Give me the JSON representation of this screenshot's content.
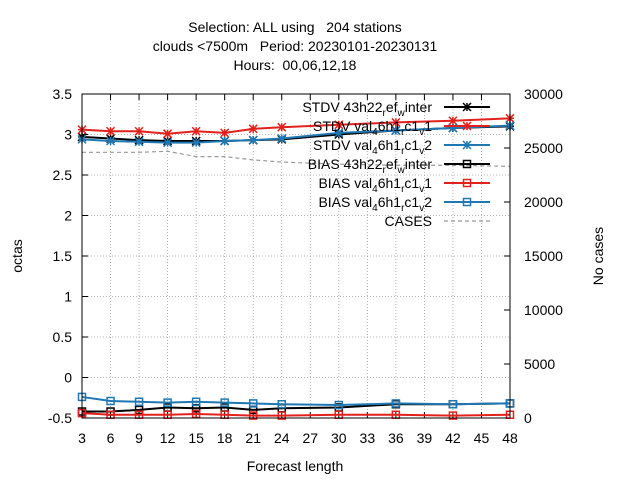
{
  "chart_data": {
    "type": "line",
    "title_lines": [
      "Selection: ALL using   204 stations",
      "clouds <7500m   Period: 20230101-20230131",
      "Hours:  00,06,12,18"
    ],
    "xlabel": "Forecast length",
    "ylabel": "octas",
    "y2label": "No cases",
    "x": [
      3,
      6,
      9,
      12,
      15,
      18,
      21,
      24,
      27,
      30,
      33,
      36,
      39,
      42,
      45,
      48
    ],
    "xticks": [
      3,
      6,
      9,
      12,
      15,
      18,
      21,
      24,
      27,
      30,
      33,
      36,
      39,
      42,
      45,
      48
    ],
    "ylim": [
      -0.5,
      3.5
    ],
    "yticks": [
      -0.5,
      0,
      0.5,
      1,
      1.5,
      2,
      2.5,
      3,
      3.5
    ],
    "ytick_labels": [
      "-0.5",
      "0",
      "0.5",
      "1",
      "1.5",
      "2",
      "2.5",
      "3",
      "3.5"
    ],
    "y2lim": [
      0,
      30000
    ],
    "y2ticks": [
      0,
      5000,
      10000,
      15000,
      20000,
      25000,
      30000
    ],
    "y2tick_labels": [
      "0",
      "5000",
      "10000",
      "15000",
      "20000",
      "25000",
      "30000"
    ],
    "grid": true,
    "legend_position": "top-right",
    "series": [
      {
        "legend_parts": [
          [
            "STDV 43h22",
            "n"
          ],
          [
            "r",
            "sub"
          ],
          [
            "ef",
            "n"
          ],
          [
            "w",
            "sub"
          ],
          [
            "inter",
            "n"
          ]
        ],
        "color": "#000000",
        "marker": "star",
        "dash": "",
        "axis": "y",
        "x": [
          3,
          6,
          9,
          12,
          15,
          18,
          21,
          24,
          30,
          36,
          42,
          48
        ],
        "values": [
          2.97,
          2.95,
          2.93,
          2.92,
          2.92,
          2.92,
          2.93,
          2.94,
          3.0,
          3.05,
          3.08,
          3.1
        ]
      },
      {
        "legend_parts": [
          [
            "STDV val",
            "n"
          ],
          [
            "4",
            "sub"
          ],
          [
            "6h1",
            "n"
          ],
          [
            "r",
            "sub"
          ],
          [
            "c1",
            "n"
          ],
          [
            "v",
            "sub"
          ],
          [
            "1",
            "n"
          ]
        ],
        "color": "#e3211c",
        "marker": "star",
        "dash": "",
        "axis": "y",
        "x": [
          3,
          6,
          9,
          12,
          15,
          18,
          21,
          24,
          30,
          36,
          42,
          48
        ],
        "values": [
          3.06,
          3.04,
          3.04,
          3.01,
          3.04,
          3.02,
          3.07,
          3.09,
          3.12,
          3.15,
          3.17,
          3.2
        ]
      },
      {
        "legend_parts": [
          [
            "STDV val",
            "n"
          ],
          [
            "4",
            "sub"
          ],
          [
            "6h1",
            "n"
          ],
          [
            "r",
            "sub"
          ],
          [
            "c1",
            "n"
          ],
          [
            "v",
            "sub"
          ],
          [
            "2",
            "n"
          ]
        ],
        "color": "#1f78b4",
        "marker": "star",
        "dash": "",
        "axis": "y",
        "x": [
          3,
          6,
          9,
          12,
          15,
          18,
          21,
          24,
          30,
          36,
          42,
          48
        ],
        "values": [
          2.94,
          2.92,
          2.91,
          2.9,
          2.9,
          2.92,
          2.93,
          2.95,
          3.02,
          3.05,
          3.08,
          3.11
        ]
      },
      {
        "legend_parts": [
          [
            "BIAS 43h22",
            "n"
          ],
          [
            "r",
            "sub"
          ],
          [
            "ef",
            "n"
          ],
          [
            "w",
            "sub"
          ],
          [
            "inter",
            "n"
          ]
        ],
        "color": "#000000",
        "marker": "square",
        "dash": "",
        "axis": "y",
        "x": [
          3,
          6,
          9,
          12,
          15,
          18,
          21,
          24,
          30,
          36,
          42,
          48
        ],
        "values": [
          -0.42,
          -0.42,
          -0.4,
          -0.37,
          -0.38,
          -0.37,
          -0.4,
          -0.38,
          -0.37,
          -0.33,
          -0.33,
          -0.32
        ]
      },
      {
        "legend_parts": [
          [
            "BIAS val",
            "n"
          ],
          [
            "4",
            "sub"
          ],
          [
            "6h1",
            "n"
          ],
          [
            "r",
            "sub"
          ],
          [
            "c1",
            "n"
          ],
          [
            "v",
            "sub"
          ],
          [
            "1",
            "n"
          ]
        ],
        "color": "#e3211c",
        "marker": "square",
        "dash": "",
        "axis": "y",
        "x": [
          3,
          6,
          9,
          12,
          15,
          18,
          21,
          24,
          30,
          36,
          42,
          48
        ],
        "values": [
          -0.44,
          -0.46,
          -0.46,
          -0.46,
          -0.45,
          -0.46,
          -0.47,
          -0.47,
          -0.46,
          -0.46,
          -0.47,
          -0.46
        ]
      },
      {
        "legend_parts": [
          [
            "BIAS val",
            "n"
          ],
          [
            "4",
            "sub"
          ],
          [
            "6h1",
            "n"
          ],
          [
            "r",
            "sub"
          ],
          [
            "c1",
            "n"
          ],
          [
            "v",
            "sub"
          ],
          [
            "2",
            "n"
          ]
        ],
        "color": "#1f78b4",
        "marker": "square",
        "dash": "",
        "axis": "y",
        "x": [
          3,
          6,
          9,
          12,
          15,
          18,
          21,
          24,
          30,
          36,
          42,
          48
        ],
        "values": [
          -0.24,
          -0.29,
          -0.3,
          -0.31,
          -0.3,
          -0.31,
          -0.32,
          -0.33,
          -0.34,
          -0.32,
          -0.33,
          -0.32
        ]
      },
      {
        "legend_parts": [
          [
            "CASES",
            "n"
          ]
        ],
        "color": "#999999",
        "marker": "none",
        "dash": "4,3",
        "axis": "y2",
        "x": [
          3,
          6,
          9,
          12,
          15,
          18,
          21,
          24,
          30,
          36,
          42,
          48
        ],
        "values": [
          24600,
          24600,
          24600,
          24700,
          24200,
          24200,
          23900,
          23700,
          23500,
          23400,
          23400,
          23300
        ]
      }
    ]
  }
}
